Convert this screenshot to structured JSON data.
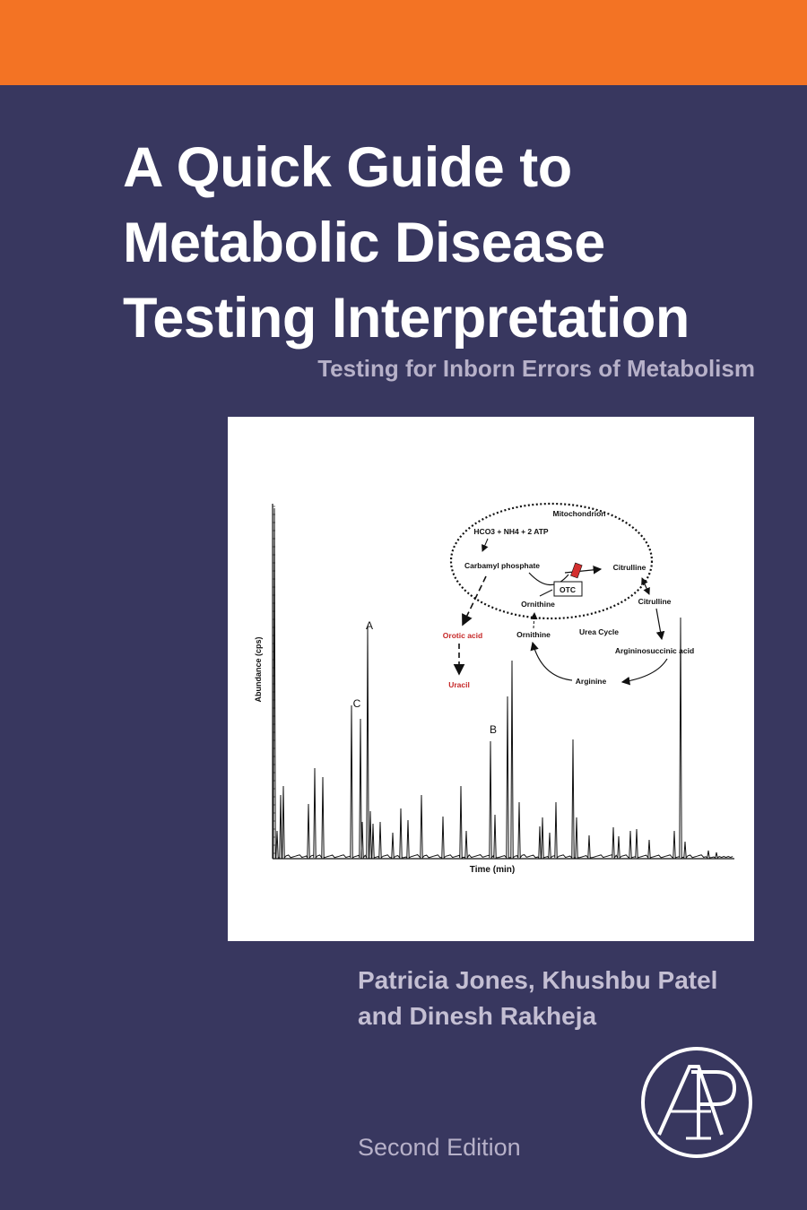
{
  "cover": {
    "title_lines": [
      "A Quick Guide to",
      "Metabolic Disease",
      "Testing Interpretation"
    ],
    "subtitle": "Testing for Inborn Errors of Metabolism",
    "authors_lines": [
      "Patricia Jones, Khushbu Patel",
      "and Dinesh Rakheja"
    ],
    "edition": "Second Edition",
    "publisher_logo": "AP",
    "colors": {
      "background": "#38375f",
      "top_band": "#f37324",
      "title": "#ffffff",
      "subtitle": "#b7b1c9"
    }
  },
  "figure": {
    "y_axis_label": "Abundance (cps)",
    "x_axis_label": "Time (min)",
    "peak_labels": [
      "A",
      "B",
      "C"
    ],
    "pathway": {
      "compartment": "Mitochondrion",
      "nodes": {
        "substrates": "HCO3 + NH4 + 2 ATP",
        "carbamyl": "Carbamyl phosphate",
        "citrulline_mito": "Citrulline",
        "enzyme": "OTC",
        "ornithine_mito": "Ornithine",
        "citrulline_cyto": "Citrulline",
        "orotic": "Orotic acid",
        "uracil": "Uracil",
        "ornithine_cyto": "Ornithine",
        "cycle": "Urea Cycle",
        "argsucc": "Argininosuccinic acid",
        "arginine": "Arginine"
      }
    }
  }
}
